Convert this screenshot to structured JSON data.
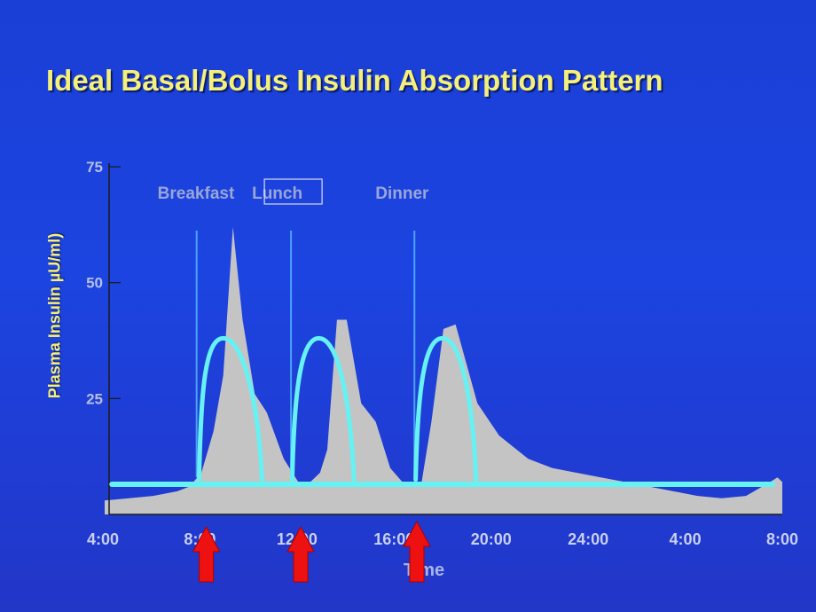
{
  "slide": {
    "title": "Ideal Basal/Bolus Insulin Absorption Pattern"
  },
  "colors": {
    "background": "#1c44e0",
    "title": "#f5f07a",
    "area": "#c4c4c4",
    "curve": "#66f2f2",
    "arrow": "#ee1111",
    "meal_line": "#4aa2ff"
  },
  "chart_data": {
    "type": "area",
    "title": "Ideal Basal/Bolus Insulin Absorption Pattern",
    "xlabel": "Time",
    "ylabel": "Plasma Insulin µU/ml)",
    "ylim": [
      0,
      75
    ],
    "y_ticks": [
      25,
      50,
      75
    ],
    "x_ticks": [
      "4:00",
      "8:00",
      "12:00",
      "16:00",
      "20:00",
      "24:00",
      "4:00",
      "8:00"
    ],
    "xlim": [
      4,
      32
    ],
    "grid": false,
    "meals": [
      {
        "label": "Breakfast",
        "time": 7.8
      },
      {
        "label": "Lunch",
        "time": 11.7
      },
      {
        "label": "Dinner",
        "time": 16.8
      }
    ],
    "injections": [
      8.2,
      12.1,
      16.9
    ],
    "series": [
      {
        "kind": "area",
        "x": [
          4,
          5,
          6,
          7,
          7.5,
          8,
          8.5,
          8.9,
          9.3,
          9.7,
          10.2,
          10.7,
          11.4,
          12,
          12.5,
          12.9,
          13.2,
          13.6,
          14,
          14.6,
          15.2,
          15.8,
          16.3,
          16.8,
          17.1,
          17.5,
          18,
          18.5,
          19.4,
          20.3,
          21.5,
          22.5,
          23.5,
          24.5,
          25.5,
          26.5,
          27.5,
          28.5,
          29.5,
          30.5,
          31.5,
          31.8,
          32
        ],
        "y": [
          3,
          3.5,
          4,
          5,
          6,
          9,
          18,
          30,
          62,
          42,
          26,
          22,
          12,
          7,
          7,
          9,
          14,
          42,
          42,
          24,
          20,
          10,
          7,
          7,
          7,
          20,
          40,
          41,
          24,
          17,
          12,
          10,
          9,
          8,
          7,
          6,
          5,
          4,
          3.5,
          4,
          7,
          8,
          7
        ]
      },
      {
        "kind": "bolus",
        "peaks": [
          {
            "start": 7.9,
            "peak": 8.9,
            "end": 10.5,
            "max": 38
          },
          {
            "start": 11.75,
            "peak": 12.85,
            "end": 14.3,
            "max": 38
          },
          {
            "start": 16.85,
            "peak": 17.95,
            "end": 19.35,
            "max": 38
          }
        ]
      },
      {
        "kind": "basal",
        "value": 6.5,
        "x_start": 4.3,
        "x_end": 31.6
      }
    ]
  }
}
